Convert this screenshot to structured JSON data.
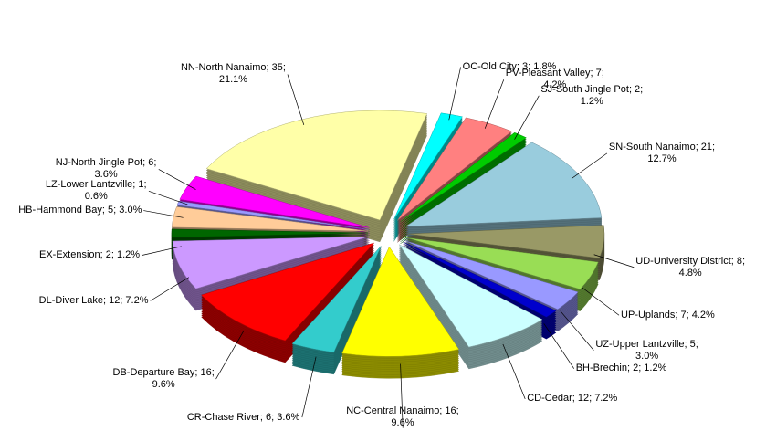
{
  "chart_data": {
    "type": "pie",
    "values": [
      35,
      3,
      7,
      2,
      21,
      8,
      7,
      5,
      2,
      12,
      16,
      6,
      16,
      12,
      2,
      5,
      1,
      6
    ],
    "value_labels": [
      "NN-North Nanaimo; 35;\n21.1%",
      "OC-Old City; 3; 1.8%",
      "PV-Pleasant Valley; 7;\n4.2%",
      "SJ-South Jingle Pot; 2;\n1.2%",
      "SN-South Nanaimo; 21;\n12.7%",
      "UD-University District; 8;\n4.8%",
      "UP-Uplands; 7; 4.2%",
      "UZ-Upper Lantzville; 5;\n3.0%",
      "BH-Brechin; 2; 1.2%",
      "CD-Cedar; 12; 7.2%",
      "NC-Central Nanaimo; 16;\n9.6%",
      "CR-Chase River; 6; 3.6%",
      "DB-Departure Bay; 16;\n9.6%",
      "DL-Diver Lake; 12; 7.2%",
      "EX-Extension; 2; 1.2%",
      "HB-Hammond Bay; 5; 3.0%",
      "LZ-Lower Lantzville; 1;\n0.6%",
      "NJ-North Jingle Pot; 6;\n3.6%"
    ],
    "colors": [
      "#ffffa8",
      "#00ffff",
      "#ff8080",
      "#00cc00",
      "#99ccdd",
      "#999966",
      "#99dd55",
      "#9999ff",
      "#0000cc",
      "#ccffff",
      "#ffff00",
      "#33cccc",
      "#ff0000",
      "#cc99ff",
      "#006600",
      "#ffcc99",
      "#9999ff",
      "#ff00ff"
    ]
  }
}
